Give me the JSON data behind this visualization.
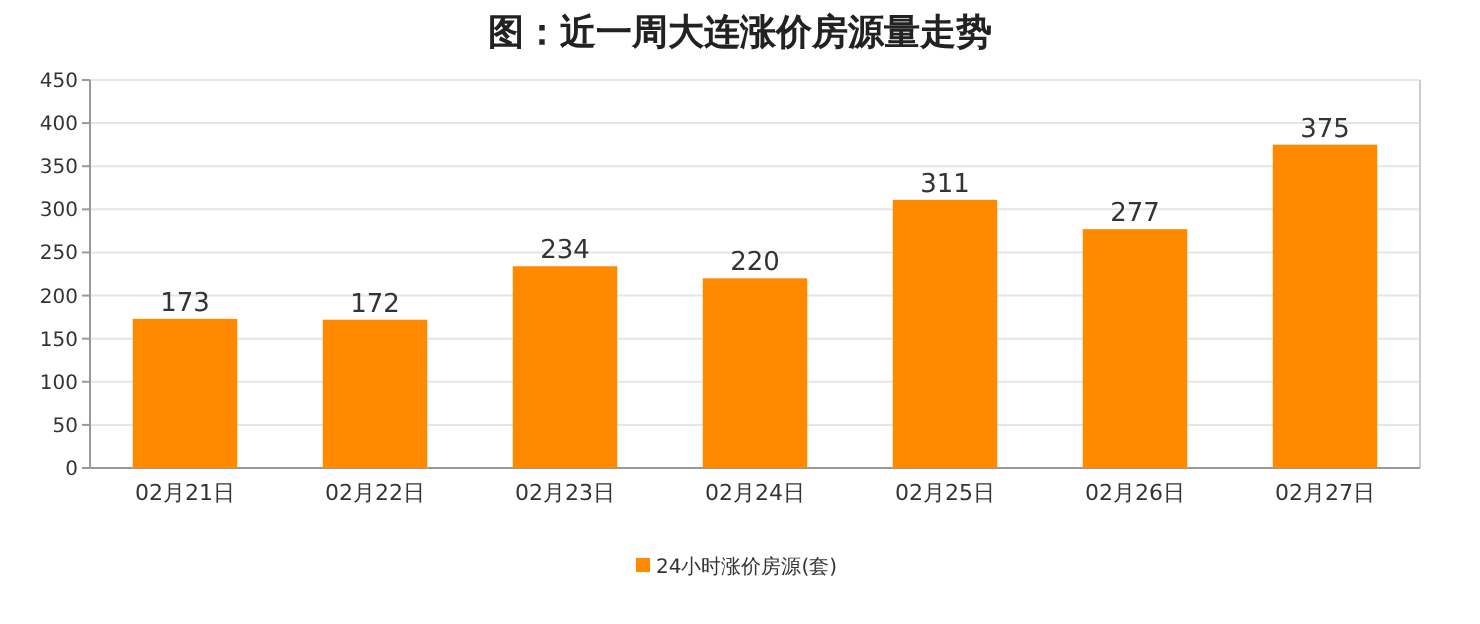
{
  "chart_data": {
    "type": "bar",
    "title": "图：近一周大连涨价房源量走势",
    "categories": [
      "02月21日",
      "02月22日",
      "02月23日",
      "02月24日",
      "02月25日",
      "02月26日",
      "02月27日"
    ],
    "series": [
      {
        "name": "24小时涨价房源(套)",
        "color": "#ff8a00",
        "values": [
          173,
          172,
          234,
          220,
          311,
          277,
          375
        ]
      }
    ],
    "ylim": [
      0,
      450
    ],
    "yticks": [
      0,
      50,
      100,
      150,
      200,
      250,
      300,
      350,
      400,
      450
    ],
    "grid": "y",
    "legend": "bottom",
    "data_labels": true
  }
}
